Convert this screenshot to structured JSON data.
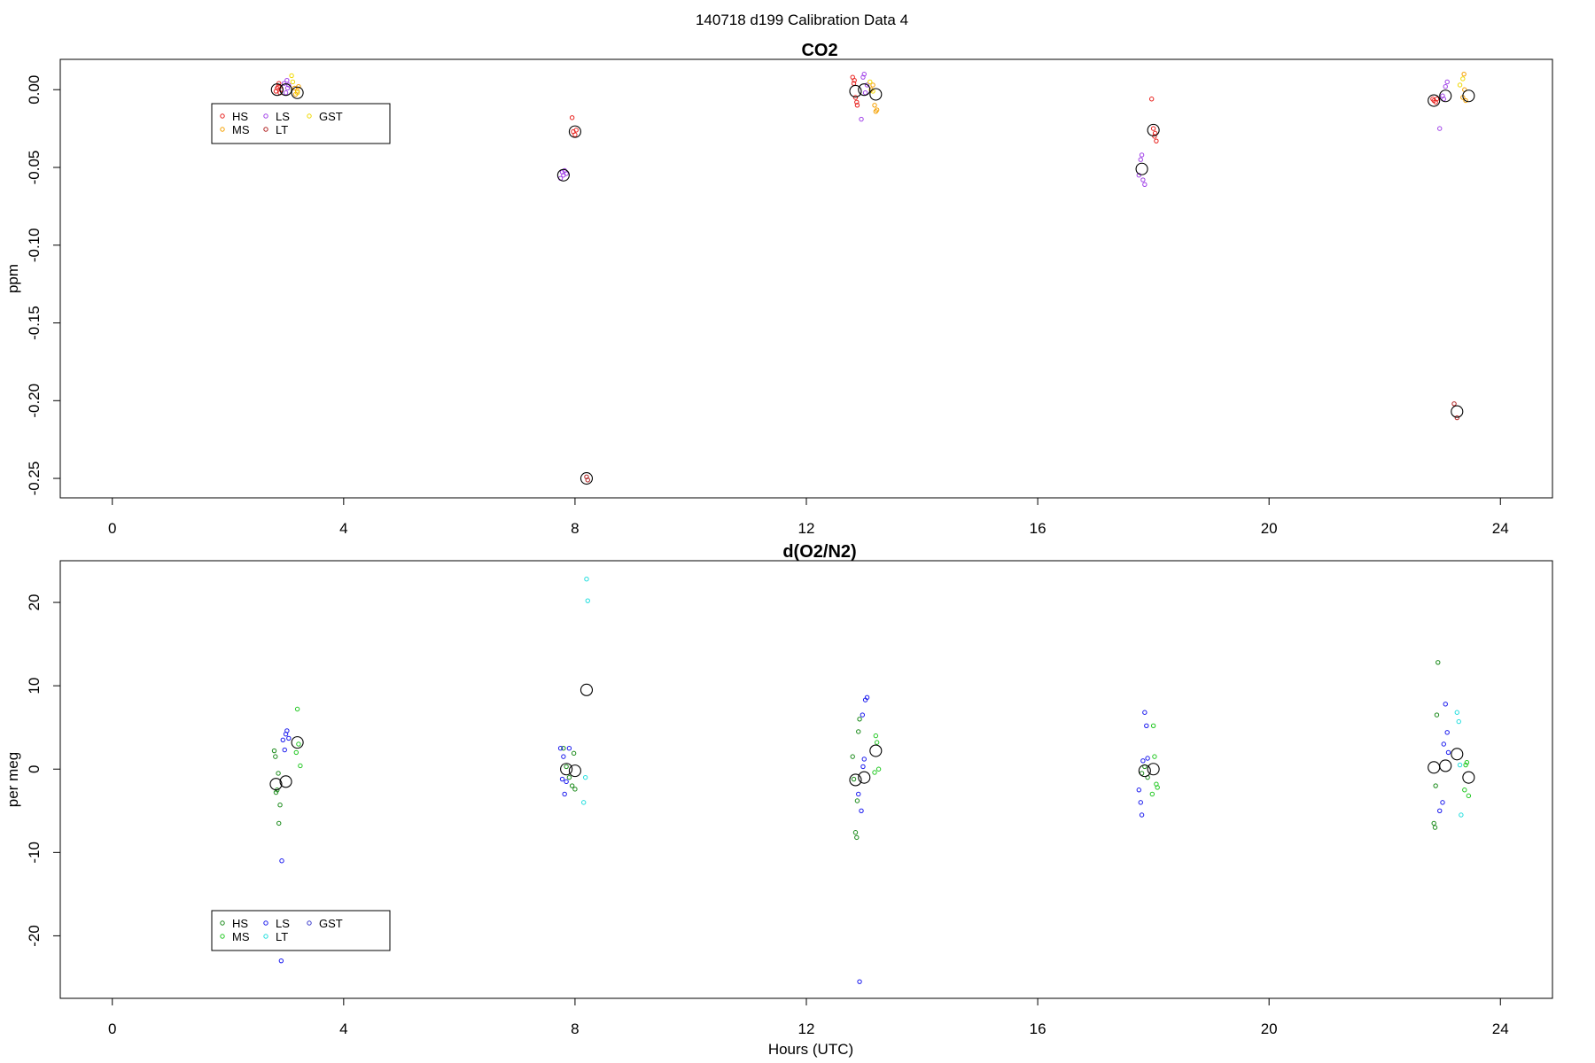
{
  "page_title": "140718   d199   Calibration Data 4",
  "colors": {
    "HS": "#e8201c",
    "MS": "#f5a000",
    "LS": "#a040e8",
    "GST": "#f0d800",
    "LT": "#b02020",
    "o2_HS": "#1a8a1a",
    "o2_MS": "#22c822",
    "o2_LS": "#1a1aee",
    "o2_GST": "#3a3acc",
    "o2_LT": "#22dede",
    "mean": "#000000"
  },
  "chart_data": [
    {
      "type": "scatter",
      "title": "CO2",
      "xlabel": "",
      "ylabel": "ppm",
      "xlim": [
        -0.9,
        24.9
      ],
      "ylim": [
        -0.2625,
        0.0195
      ],
      "xticks": [
        0,
        4,
        8,
        12,
        16,
        20,
        24
      ],
      "yticks": [
        0.0,
        -0.05,
        -0.1,
        -0.15,
        -0.2,
        -0.25
      ],
      "ytick_labels": [
        "0.00",
        "-0.05",
        "-0.10",
        "-0.15",
        "-0.20",
        "-0.25"
      ],
      "legend": {
        "placement": "top-left",
        "entries": [
          {
            "name": "HS",
            "color_key": "HS"
          },
          {
            "name": "MS",
            "color_key": "MS"
          },
          {
            "name": "LS",
            "color_key": "LS"
          },
          {
            "name": "LT",
            "color_key": "LT"
          },
          {
            "name": "GST",
            "color_key": "GST"
          }
        ]
      },
      "series": [
        {
          "name": "HS",
          "color_key": "HS",
          "points": [
            [
              2.83,
              -0.001
            ],
            [
              2.85,
              0.001
            ],
            [
              2.87,
              0.002
            ],
            [
              2.9,
              -0.002
            ],
            [
              2.88,
              0.004
            ],
            [
              2.92,
              0.0
            ],
            [
              7.95,
              -0.018
            ],
            [
              7.97,
              -0.027
            ],
            [
              8.0,
              -0.029
            ],
            [
              8.02,
              -0.026
            ],
            [
              12.8,
              0.008
            ],
            [
              12.82,
              0.004
            ],
            [
              12.85,
              -0.005
            ],
            [
              12.87,
              -0.008
            ],
            [
              12.88,
              -0.01
            ],
            [
              12.83,
              0.006
            ],
            [
              17.97,
              -0.006
            ],
            [
              18.0,
              -0.025
            ],
            [
              18.02,
              -0.03
            ],
            [
              18.05,
              -0.033
            ],
            [
              18.03,
              -0.028
            ],
            [
              22.83,
              -0.006
            ],
            [
              22.85,
              -0.007
            ],
            [
              22.88,
              -0.008
            ],
            [
              22.9,
              -0.006
            ]
          ]
        },
        {
          "name": "MS",
          "color_key": "MS",
          "points": [
            [
              3.2,
              -0.001
            ],
            [
              3.17,
              -0.003
            ],
            [
              3.22,
              0.002
            ],
            [
              3.15,
              0.001
            ],
            [
              13.15,
              0.003
            ],
            [
              13.18,
              -0.01
            ],
            [
              13.2,
              -0.014
            ],
            [
              13.12,
              0.0
            ],
            [
              13.22,
              -0.013
            ],
            [
              23.35,
              -0.005
            ],
            [
              23.37,
              0.01
            ],
            [
              23.4,
              -0.007
            ],
            [
              23.38,
              0.0
            ]
          ]
        },
        {
          "name": "LS",
          "color_key": "LS",
          "points": [
            [
              2.97,
              0.004
            ],
            [
              3.0,
              -0.002
            ],
            [
              3.03,
              0.001
            ],
            [
              3.05,
              0.003
            ],
            [
              3.02,
              0.006
            ],
            [
              7.75,
              -0.057
            ],
            [
              7.78,
              -0.053
            ],
            [
              7.8,
              -0.055
            ],
            [
              7.82,
              -0.052
            ],
            [
              7.85,
              -0.054
            ],
            [
              12.95,
              -0.019
            ],
            [
              12.98,
              0.008
            ],
            [
              13.0,
              0.01
            ],
            [
              13.02,
              -0.002
            ],
            [
              13.05,
              0.003
            ],
            [
              17.75,
              -0.055
            ],
            [
              17.78,
              -0.045
            ],
            [
              17.8,
              -0.042
            ],
            [
              17.82,
              -0.058
            ],
            [
              17.85,
              -0.061
            ],
            [
              22.95,
              -0.025
            ],
            [
              23.0,
              -0.004
            ],
            [
              23.05,
              0.002
            ],
            [
              23.08,
              0.005
            ],
            [
              23.02,
              -0.006
            ]
          ]
        },
        {
          "name": "LT",
          "color_key": "LT",
          "points": [
            [
              8.2,
              -0.249
            ],
            [
              8.22,
              -0.251
            ],
            [
              23.2,
              -0.202
            ],
            [
              23.25,
              -0.211
            ]
          ]
        },
        {
          "name": "GST",
          "color_key": "GST",
          "points": [
            [
              3.1,
              0.009
            ],
            [
              3.12,
              0.005
            ],
            [
              3.2,
              -0.002
            ],
            [
              13.1,
              0.005
            ],
            [
              13.15,
              -0.001
            ],
            [
              23.3,
              0.003
            ],
            [
              23.35,
              0.007
            ]
          ]
        },
        {
          "name": "",
          "color_key": "mean",
          "size": "large",
          "points": [
            [
              2.85,
              0.0
            ],
            [
              3.0,
              0.0
            ],
            [
              3.2,
              -0.002
            ],
            [
              7.8,
              -0.055
            ],
            [
              8.0,
              -0.027
            ],
            [
              8.2,
              -0.25
            ],
            [
              12.85,
              -0.001
            ],
            [
              13.0,
              0.0
            ],
            [
              13.2,
              -0.003
            ],
            [
              17.8,
              -0.051
            ],
            [
              18.0,
              -0.026
            ],
            [
              22.85,
              -0.007
            ],
            [
              23.05,
              -0.004
            ],
            [
              23.25,
              -0.207
            ],
            [
              23.45,
              -0.004
            ]
          ]
        }
      ]
    },
    {
      "type": "scatter",
      "title": "d(O2/N2)",
      "xlabel": "Hours (UTC)",
      "ylabel": "per meg",
      "xlim": [
        -0.9,
        24.9
      ],
      "ylim": [
        -27.5,
        25.0
      ],
      "xticks": [
        0,
        4,
        8,
        12,
        16,
        20,
        24
      ],
      "yticks": [
        20,
        10,
        0,
        -10,
        -20
      ],
      "ytick_labels": [
        "20",
        "10",
        "0",
        "-10",
        "-20"
      ],
      "legend": {
        "placement": "bottom-left",
        "entries": [
          {
            "name": "HS",
            "color_key": "o2_HS"
          },
          {
            "name": "MS",
            "color_key": "o2_MS"
          },
          {
            "name": "LS",
            "color_key": "o2_LS"
          },
          {
            "name": "LT",
            "color_key": "o2_LT"
          },
          {
            "name": "GST",
            "color_key": "o2_GST"
          }
        ]
      },
      "series": [
        {
          "name": "HS",
          "color_key": "o2_HS",
          "points": [
            [
              2.8,
              2.2
            ],
            [
              2.82,
              1.5
            ],
            [
              2.85,
              -2.5
            ],
            [
              2.87,
              -0.5
            ],
            [
              2.9,
              -4.3
            ],
            [
              2.88,
              -6.5
            ],
            [
              2.83,
              -2.8
            ],
            [
              7.8,
              2.5
            ],
            [
              7.85,
              0.3
            ],
            [
              7.9,
              -1.0
            ],
            [
              7.95,
              -2.0
            ],
            [
              8.0,
              -2.4
            ],
            [
              7.98,
              1.9
            ],
            [
              12.8,
              1.5
            ],
            [
              12.82,
              -1.2
            ],
            [
              12.85,
              -7.6
            ],
            [
              12.87,
              -8.2
            ],
            [
              12.88,
              -3.8
            ],
            [
              12.9,
              4.5
            ],
            [
              12.92,
              6.0
            ],
            [
              17.8,
              -0.5
            ],
            [
              17.85,
              0.3
            ],
            [
              17.9,
              -1.0
            ],
            [
              22.85,
              -6.5
            ],
            [
              22.87,
              -7.0
            ],
            [
              22.9,
              6.5
            ],
            [
              22.92,
              12.8
            ],
            [
              22.88,
              -2.0
            ]
          ]
        },
        {
          "name": "MS",
          "color_key": "o2_MS",
          "points": [
            [
              3.2,
              7.2
            ],
            [
              3.22,
              3.0
            ],
            [
              3.25,
              0.4
            ],
            [
              3.18,
              2.0
            ],
            [
              13.2,
              4.0
            ],
            [
              13.25,
              0.0
            ],
            [
              13.22,
              3.2
            ],
            [
              13.18,
              -0.4
            ],
            [
              18.0,
              5.2
            ],
            [
              18.02,
              1.5
            ],
            [
              18.05,
              -1.8
            ],
            [
              18.07,
              -2.2
            ],
            [
              17.98,
              -3.0
            ],
            [
              23.4,
              0.5
            ],
            [
              23.42,
              0.8
            ],
            [
              23.38,
              -2.5
            ],
            [
              23.45,
              -3.2
            ]
          ]
        },
        {
          "name": "LS",
          "color_key": "o2_LS",
          "points": [
            [
              2.95,
              3.5
            ],
            [
              3.0,
              4.2
            ],
            [
              3.02,
              4.6
            ],
            [
              3.05,
              3.7
            ],
            [
              2.98,
              2.3
            ],
            [
              2.93,
              -11.0
            ],
            [
              2.92,
              -23.0
            ],
            [
              7.75,
              2.5
            ],
            [
              7.8,
              1.5
            ],
            [
              7.82,
              -3.0
            ],
            [
              7.85,
              -1.5
            ],
            [
              7.9,
              2.5
            ],
            [
              7.78,
              -1.2
            ],
            [
              12.9,
              -3.0
            ],
            [
              12.95,
              -5.0
            ],
            [
              12.98,
              0.3
            ],
            [
              13.0,
              1.2
            ],
            [
              13.02,
              8.3
            ],
            [
              13.05,
              8.6
            ],
            [
              12.97,
              6.5
            ],
            [
              12.92,
              -25.5
            ],
            [
              17.75,
              -2.5
            ],
            [
              17.78,
              -4.0
            ],
            [
              17.8,
              -5.5
            ],
            [
              17.82,
              1.0
            ],
            [
              17.85,
              6.8
            ],
            [
              17.88,
              5.2
            ],
            [
              17.9,
              1.3
            ],
            [
              22.95,
              -5.0
            ],
            [
              23.0,
              -4.0
            ],
            [
              23.02,
              3.0
            ],
            [
              23.05,
              7.8
            ],
            [
              23.08,
              4.4
            ],
            [
              23.1,
              2.0
            ]
          ]
        },
        {
          "name": "LT",
          "color_key": "o2_LT",
          "points": [
            [
              8.2,
              22.8
            ],
            [
              8.22,
              20.2
            ],
            [
              8.18,
              -1.0
            ],
            [
              8.15,
              -4.0
            ],
            [
              23.25,
              6.8
            ],
            [
              23.28,
              5.7
            ],
            [
              23.3,
              0.5
            ],
            [
              23.32,
              -5.5
            ]
          ]
        },
        {
          "name": "GST",
          "color_key": "o2_GST",
          "points": []
        },
        {
          "name": "",
          "color_key": "mean",
          "size": "large",
          "points": [
            [
              2.83,
              -1.8
            ],
            [
              3.0,
              -1.5
            ],
            [
              3.2,
              3.2
            ],
            [
              7.85,
              0.0
            ],
            [
              8.0,
              -0.2
            ],
            [
              8.2,
              9.5
            ],
            [
              12.85,
              -1.3
            ],
            [
              13.0,
              -1.0
            ],
            [
              13.2,
              2.2
            ],
            [
              17.85,
              -0.2
            ],
            [
              18.0,
              0.0
            ],
            [
              22.85,
              0.2
            ],
            [
              23.05,
              0.4
            ],
            [
              23.25,
              1.8
            ],
            [
              23.45,
              -1.0
            ]
          ]
        }
      ]
    }
  ]
}
